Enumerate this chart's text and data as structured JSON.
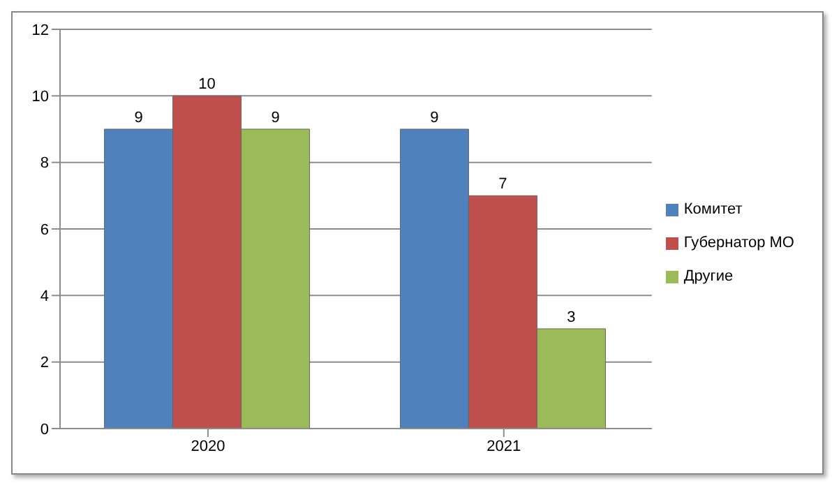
{
  "chart_data": {
    "type": "bar",
    "categories": [
      "2020",
      "2021"
    ],
    "series": [
      {
        "name": "Комитет",
        "color": "#4f81bd",
        "values": [
          9,
          9
        ]
      },
      {
        "name": "Губернатор МО",
        "color": "#c0504d",
        "values": [
          10,
          7
        ]
      },
      {
        "name": "Другие",
        "color": "#9bbb59",
        "values": [
          9,
          3
        ]
      }
    ],
    "ylim": [
      0,
      12
    ],
    "yticks": [
      0,
      2,
      4,
      6,
      8,
      10,
      12
    ],
    "grid": "y",
    "legend": "right",
    "data_labels": true
  }
}
